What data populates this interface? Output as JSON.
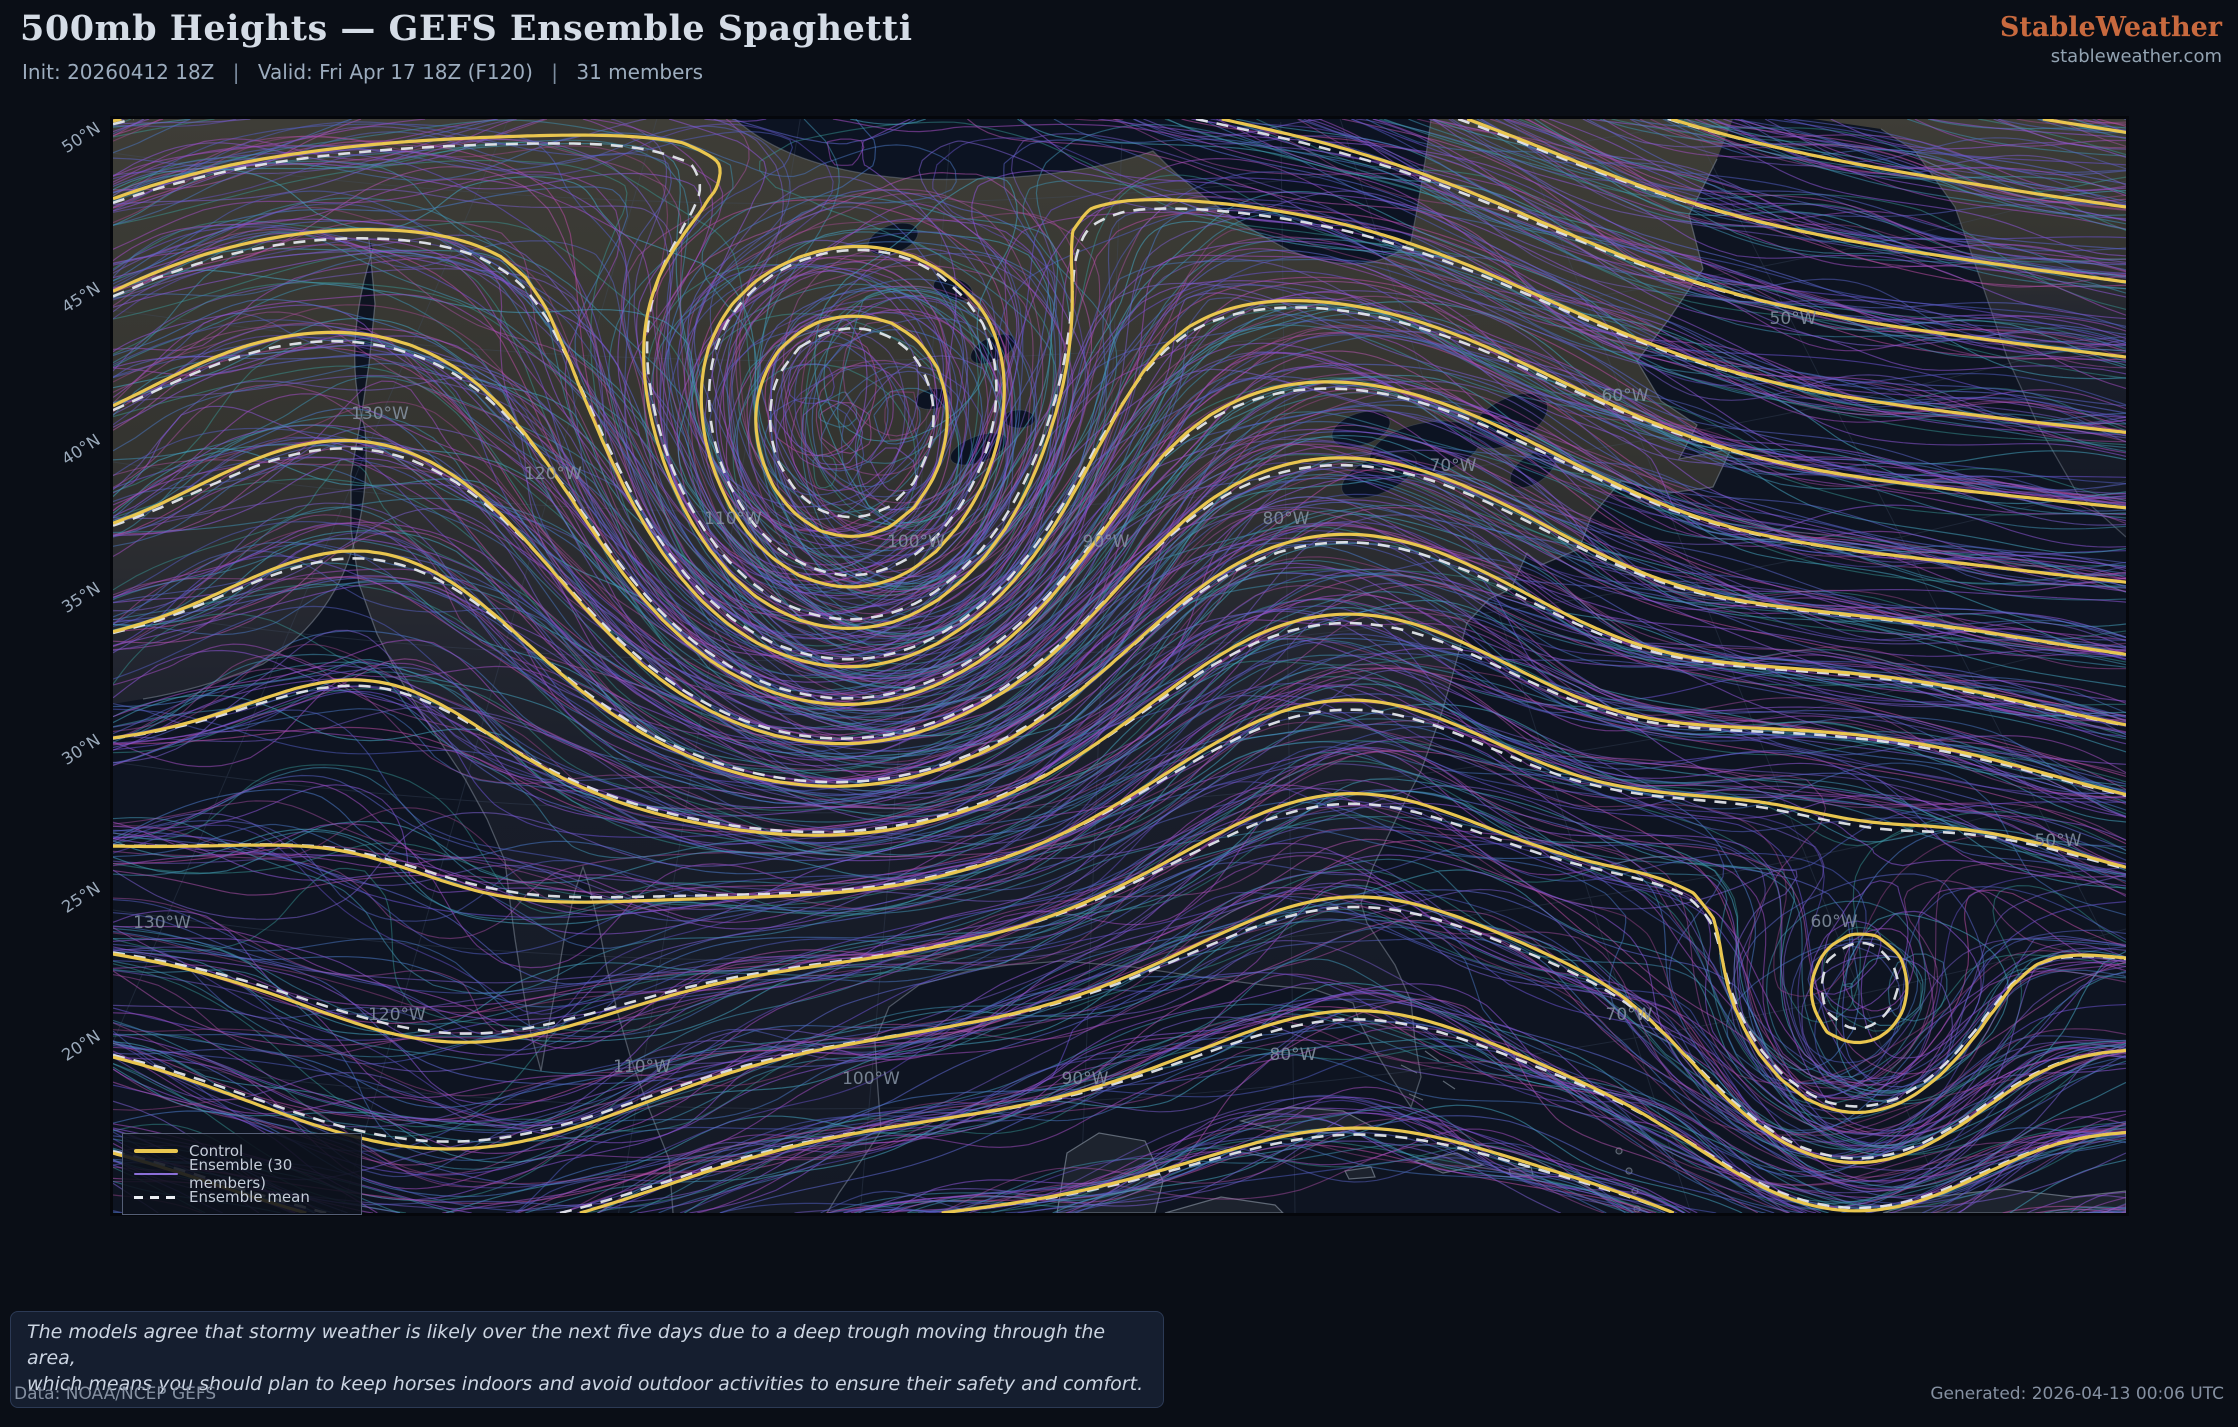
{
  "header": {
    "title": "500mb Heights — GEFS Ensemble Spaghetti",
    "init": "Init: 20260412 18Z",
    "valid": "Valid: Fri Apr 17 18Z (F120)",
    "members": "31 members",
    "sep": "|",
    "brand": "StableWeather",
    "brand_domain": "stableweather.com"
  },
  "map": {
    "legend": [
      {
        "label": "Control",
        "style": "solid",
        "color": "#e9c64f"
      },
      {
        "label": "Ensemble (30 members)",
        "style": "solid",
        "color": "#8b6fd8"
      },
      {
        "label": "Ensemble mean",
        "style": "dashed",
        "color": "#eceff3"
      }
    ],
    "lat_labels": [
      "50°N",
      "45°N",
      "40°N",
      "35°N",
      "30°N",
      "25°N",
      "20°N"
    ],
    "lon_labels_upper": [
      "130°W",
      "120°W",
      "110°W",
      "100°W",
      "90°W",
      "80°W",
      "70°W",
      "60°W",
      "50°W"
    ],
    "lon_labels_lower": [
      "130°W",
      "120°W",
      "110°W",
      "100°W",
      "90°W",
      "80°W",
      "70°W",
      "60°W",
      "50°W"
    ]
  },
  "note": {
    "line1": "The models agree that stormy weather is likely over the next five days due to a deep trough moving through the area,",
    "line2": "which means you should plan to keep horses indoors and avoid outdoor activities to ensure their safety and comfort."
  },
  "footer": {
    "left": "Data: NOAA/NCEP GEFS",
    "right": "Generated: 2026-04-13 00:06 UTC"
  },
  "colors": {
    "page_bg": "#0a0e16",
    "ocean": "#0e1421",
    "land_north": "#3e3d37",
    "land_south": "#141925",
    "lake": "#0c1322",
    "coast": "#8792a0",
    "graticule": "#45536b",
    "lon_label": "#8794a5",
    "control": "#e9c64f",
    "mean": "#e8ebf0",
    "member_palette": [
      "#7b5fd0",
      "#a04cc0",
      "#5c66cc",
      "#3f8fae",
      "#8f55d8",
      "#bb54b4",
      "#4a77c4",
      "#3aa09e",
      "#6d54d4",
      "#b44a9e",
      "#5560c8",
      "#43a0bc"
    ]
  },
  "chart_data": {
    "type": "contour-spaghetti-map",
    "title": "500mb Heights — GEFS Ensemble Spaghetti",
    "variable": "500mb geopotential height",
    "model": "GEFS ensemble",
    "init": "20260412 18Z",
    "valid": "Fri Apr 17 18Z (F120)",
    "forecast_hour": "F120",
    "members_total": 31,
    "series": [
      {
        "name": "Control",
        "style": "solid",
        "color": "#e9c64f",
        "count": 1
      },
      {
        "name": "Ensemble (30 members)",
        "style": "solid",
        "color": "#8b6fd8",
        "count": 30
      },
      {
        "name": "Ensemble mean",
        "style": "dashed",
        "color": "#eceff3",
        "count": 1
      }
    ],
    "map_extent": {
      "lat_south": "20°N",
      "lat_north": "50°N",
      "lon_west": "130°W",
      "lon_east": "50°W"
    },
    "lat_ticks": [
      "50°N",
      "45°N",
      "40°N",
      "35°N",
      "30°N",
      "25°N",
      "20°N"
    ],
    "lon_ticks": [
      "130°W",
      "120°W",
      "110°W",
      "100°W",
      "90°W",
      "80°W",
      "70°W",
      "60°W",
      "50°W"
    ],
    "legend_position": "bottom-left",
    "legend": [
      "Control",
      "Ensemble (30 members)",
      "Ensemble mean"
    ]
  }
}
